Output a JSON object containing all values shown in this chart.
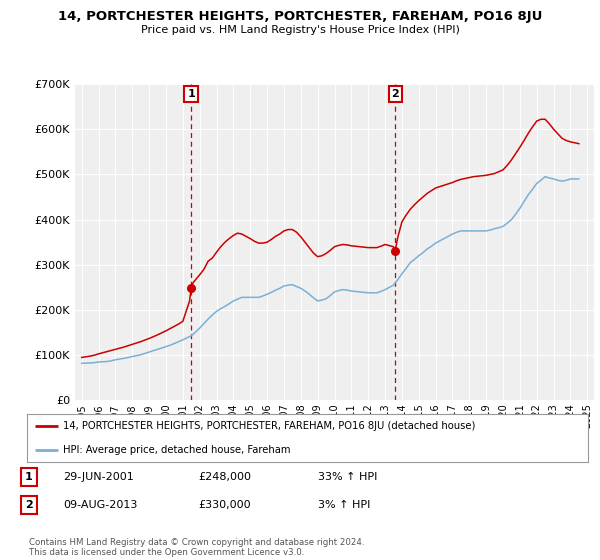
{
  "title": "14, PORTCHESTER HEIGHTS, PORTCHESTER, FAREHAM, PO16 8JU",
  "subtitle": "Price paid vs. HM Land Registry's House Price Index (HPI)",
  "legend_line1": "14, PORTCHESTER HEIGHTS, PORTCHESTER, FAREHAM, PO16 8JU (detached house)",
  "legend_line2": "HPI: Average price, detached house, Fareham",
  "ylim": [
    0,
    700000
  ],
  "yticks": [
    0,
    100000,
    200000,
    300000,
    400000,
    500000,
    600000,
    700000
  ],
  "ytick_labels": [
    "£0",
    "£100K",
    "£200K",
    "£300K",
    "£400K",
    "£500K",
    "£600K",
    "£700K"
  ],
  "background_color": "#ffffff",
  "plot_bg_color": "#efefef",
  "grid_color": "#ffffff",
  "sale1_date": 2001.49,
  "sale1_price": 248000,
  "sale1_label": "1",
  "sale1_display": "29-JUN-2001",
  "sale1_amount": "£248,000",
  "sale1_hpi": "33% ↑ HPI",
  "sale2_date": 2013.6,
  "sale2_price": 330000,
  "sale2_label": "2",
  "sale2_display": "09-AUG-2013",
  "sale2_amount": "£330,000",
  "sale2_hpi": "3% ↑ HPI",
  "red_line_color": "#cc0000",
  "blue_line_color": "#7ab0d4",
  "dashed_line_color": "#cc0000",
  "footer": "Contains HM Land Registry data © Crown copyright and database right 2024.\nThis data is licensed under the Open Government Licence v3.0.",
  "hpi_data": [
    [
      1995.0,
      82000
    ],
    [
      1995.25,
      82500
    ],
    [
      1995.5,
      83000
    ],
    [
      1995.75,
      83500
    ],
    [
      1996.0,
      85000
    ],
    [
      1996.25,
      85500
    ],
    [
      1996.5,
      86000
    ],
    [
      1996.75,
      87500
    ],
    [
      1997.0,
      90000
    ],
    [
      1997.25,
      91500
    ],
    [
      1997.5,
      93000
    ],
    [
      1997.75,
      95000
    ],
    [
      1998.0,
      97000
    ],
    [
      1998.25,
      99000
    ],
    [
      1998.5,
      101000
    ],
    [
      1998.75,
      104000
    ],
    [
      1999.0,
      107000
    ],
    [
      1999.25,
      110000
    ],
    [
      1999.5,
      113000
    ],
    [
      1999.75,
      116000
    ],
    [
      2000.0,
      119000
    ],
    [
      2000.25,
      122000
    ],
    [
      2000.5,
      126000
    ],
    [
      2000.75,
      130000
    ],
    [
      2001.0,
      134000
    ],
    [
      2001.25,
      138500
    ],
    [
      2001.5,
      143000
    ],
    [
      2001.75,
      151000
    ],
    [
      2002.0,
      160000
    ],
    [
      2002.25,
      170000
    ],
    [
      2002.5,
      180000
    ],
    [
      2002.75,
      189000
    ],
    [
      2003.0,
      197000
    ],
    [
      2003.25,
      203000
    ],
    [
      2003.5,
      208000
    ],
    [
      2003.75,
      214000
    ],
    [
      2004.0,
      220000
    ],
    [
      2004.25,
      224000
    ],
    [
      2004.5,
      228000
    ],
    [
      2004.75,
      228000
    ],
    [
      2005.0,
      228000
    ],
    [
      2005.25,
      228000
    ],
    [
      2005.5,
      228000
    ],
    [
      2005.75,
      231000
    ],
    [
      2006.0,
      235000
    ],
    [
      2006.25,
      239000
    ],
    [
      2006.5,
      244000
    ],
    [
      2006.75,
      248000
    ],
    [
      2007.0,
      253000
    ],
    [
      2007.25,
      255000
    ],
    [
      2007.5,
      256000
    ],
    [
      2007.75,
      252000
    ],
    [
      2008.0,
      248000
    ],
    [
      2008.25,
      242000
    ],
    [
      2008.5,
      235000
    ],
    [
      2008.75,
      227000
    ],
    [
      2009.0,
      220000
    ],
    [
      2009.25,
      222000
    ],
    [
      2009.5,
      225000
    ],
    [
      2009.75,
      232000
    ],
    [
      2010.0,
      240000
    ],
    [
      2010.25,
      243000
    ],
    [
      2010.5,
      245000
    ],
    [
      2010.75,
      244000
    ],
    [
      2011.0,
      242000
    ],
    [
      2011.25,
      241000
    ],
    [
      2011.5,
      240000
    ],
    [
      2011.75,
      239000
    ],
    [
      2012.0,
      238000
    ],
    [
      2012.25,
      238000
    ],
    [
      2012.5,
      238000
    ],
    [
      2012.75,
      241000
    ],
    [
      2013.0,
      245000
    ],
    [
      2013.25,
      250000
    ],
    [
      2013.5,
      255000
    ],
    [
      2013.75,
      267000
    ],
    [
      2014.0,
      280000
    ],
    [
      2014.25,
      292000
    ],
    [
      2014.5,
      305000
    ],
    [
      2014.75,
      312000
    ],
    [
      2015.0,
      320000
    ],
    [
      2015.25,
      327000
    ],
    [
      2015.5,
      335000
    ],
    [
      2015.75,
      341000
    ],
    [
      2016.0,
      348000
    ],
    [
      2016.25,
      353000
    ],
    [
      2016.5,
      358000
    ],
    [
      2016.75,
      363000
    ],
    [
      2017.0,
      368000
    ],
    [
      2017.25,
      372000
    ],
    [
      2017.5,
      375000
    ],
    [
      2017.75,
      375000
    ],
    [
      2018.0,
      375000
    ],
    [
      2018.25,
      375000
    ],
    [
      2018.5,
      375000
    ],
    [
      2018.75,
      375000
    ],
    [
      2019.0,
      375000
    ],
    [
      2019.25,
      377000
    ],
    [
      2019.5,
      380000
    ],
    [
      2019.75,
      382000
    ],
    [
      2020.0,
      385000
    ],
    [
      2020.25,
      392000
    ],
    [
      2020.5,
      400000
    ],
    [
      2020.75,
      412000
    ],
    [
      2021.0,
      425000
    ],
    [
      2021.25,
      440000
    ],
    [
      2021.5,
      455000
    ],
    [
      2021.75,
      467000
    ],
    [
      2022.0,
      480000
    ],
    [
      2022.25,
      487000
    ],
    [
      2022.5,
      495000
    ],
    [
      2022.75,
      492000
    ],
    [
      2023.0,
      490000
    ],
    [
      2023.25,
      487000
    ],
    [
      2023.5,
      485000
    ],
    [
      2023.75,
      487000
    ],
    [
      2024.0,
      490000
    ],
    [
      2024.5,
      490000
    ]
  ],
  "price_data": [
    [
      1995.0,
      95000
    ],
    [
      1995.25,
      96500
    ],
    [
      1995.5,
      98000
    ],
    [
      1995.75,
      100000
    ],
    [
      1996.0,
      103000
    ],
    [
      1996.25,
      105500
    ],
    [
      1996.5,
      108000
    ],
    [
      1996.75,
      110500
    ],
    [
      1997.0,
      113000
    ],
    [
      1997.25,
      115500
    ],
    [
      1997.5,
      118000
    ],
    [
      1997.75,
      121000
    ],
    [
      1998.0,
      124000
    ],
    [
      1998.25,
      127000
    ],
    [
      1998.5,
      130000
    ],
    [
      1998.75,
      133500
    ],
    [
      1999.0,
      137000
    ],
    [
      1999.25,
      141000
    ],
    [
      1999.5,
      145000
    ],
    [
      1999.75,
      149500
    ],
    [
      2000.0,
      154000
    ],
    [
      2000.25,
      159000
    ],
    [
      2000.5,
      164000
    ],
    [
      2000.75,
      169000
    ],
    [
      2001.0,
      175000
    ],
    [
      2001.4,
      220000
    ],
    [
      2001.49,
      248000
    ],
    [
      2001.6,
      260000
    ],
    [
      2002.0,
      278000
    ],
    [
      2002.25,
      290000
    ],
    [
      2002.5,
      308000
    ],
    [
      2002.75,
      315000
    ],
    [
      2003.0,
      328000
    ],
    [
      2003.25,
      340000
    ],
    [
      2003.5,
      350000
    ],
    [
      2003.75,
      358000
    ],
    [
      2004.0,
      365000
    ],
    [
      2004.25,
      370000
    ],
    [
      2004.5,
      368000
    ],
    [
      2004.75,
      363000
    ],
    [
      2005.0,
      358000
    ],
    [
      2005.25,
      352000
    ],
    [
      2005.5,
      348000
    ],
    [
      2005.75,
      348000
    ],
    [
      2006.0,
      350000
    ],
    [
      2006.25,
      356000
    ],
    [
      2006.5,
      363000
    ],
    [
      2006.75,
      368000
    ],
    [
      2007.0,
      375000
    ],
    [
      2007.25,
      378000
    ],
    [
      2007.5,
      378000
    ],
    [
      2007.75,
      372000
    ],
    [
      2008.0,
      362000
    ],
    [
      2008.25,
      350000
    ],
    [
      2008.5,
      338000
    ],
    [
      2008.75,
      326000
    ],
    [
      2009.0,
      318000
    ],
    [
      2009.25,
      320000
    ],
    [
      2009.5,
      325000
    ],
    [
      2009.75,
      332000
    ],
    [
      2010.0,
      340000
    ],
    [
      2010.25,
      343000
    ],
    [
      2010.5,
      345000
    ],
    [
      2010.75,
      344000
    ],
    [
      2011.0,
      342000
    ],
    [
      2011.25,
      341000
    ],
    [
      2011.5,
      340000
    ],
    [
      2011.75,
      339000
    ],
    [
      2012.0,
      338000
    ],
    [
      2012.25,
      338000
    ],
    [
      2012.5,
      338000
    ],
    [
      2012.75,
      341000
    ],
    [
      2013.0,
      345000
    ],
    [
      2013.5,
      340000
    ],
    [
      2013.6,
      330000
    ],
    [
      2013.75,
      360000
    ],
    [
      2014.0,
      395000
    ],
    [
      2014.25,
      410000
    ],
    [
      2014.5,
      423000
    ],
    [
      2014.75,
      433000
    ],
    [
      2015.0,
      442000
    ],
    [
      2015.25,
      450000
    ],
    [
      2015.5,
      458000
    ],
    [
      2015.75,
      464000
    ],
    [
      2016.0,
      470000
    ],
    [
      2016.25,
      473000
    ],
    [
      2016.5,
      476000
    ],
    [
      2016.75,
      479000
    ],
    [
      2017.0,
      482000
    ],
    [
      2017.25,
      486000
    ],
    [
      2017.5,
      489000
    ],
    [
      2017.75,
      491000
    ],
    [
      2018.0,
      493000
    ],
    [
      2018.25,
      495000
    ],
    [
      2018.5,
      496000
    ],
    [
      2018.75,
      497000
    ],
    [
      2019.0,
      498000
    ],
    [
      2019.25,
      500000
    ],
    [
      2019.5,
      502000
    ],
    [
      2019.75,
      506000
    ],
    [
      2020.0,
      510000
    ],
    [
      2020.25,
      520000
    ],
    [
      2020.5,
      532000
    ],
    [
      2020.75,
      546000
    ],
    [
      2021.0,
      560000
    ],
    [
      2021.25,
      575000
    ],
    [
      2021.5,
      591000
    ],
    [
      2021.75,
      605000
    ],
    [
      2022.0,
      618000
    ],
    [
      2022.25,
      622000
    ],
    [
      2022.5,
      622000
    ],
    [
      2022.75,
      612000
    ],
    [
      2023.0,
      600000
    ],
    [
      2023.25,
      590000
    ],
    [
      2023.5,
      580000
    ],
    [
      2023.75,
      575000
    ],
    [
      2024.0,
      572000
    ],
    [
      2024.5,
      568000
    ]
  ],
  "xlim_left": 1994.6,
  "xlim_right": 2025.4
}
